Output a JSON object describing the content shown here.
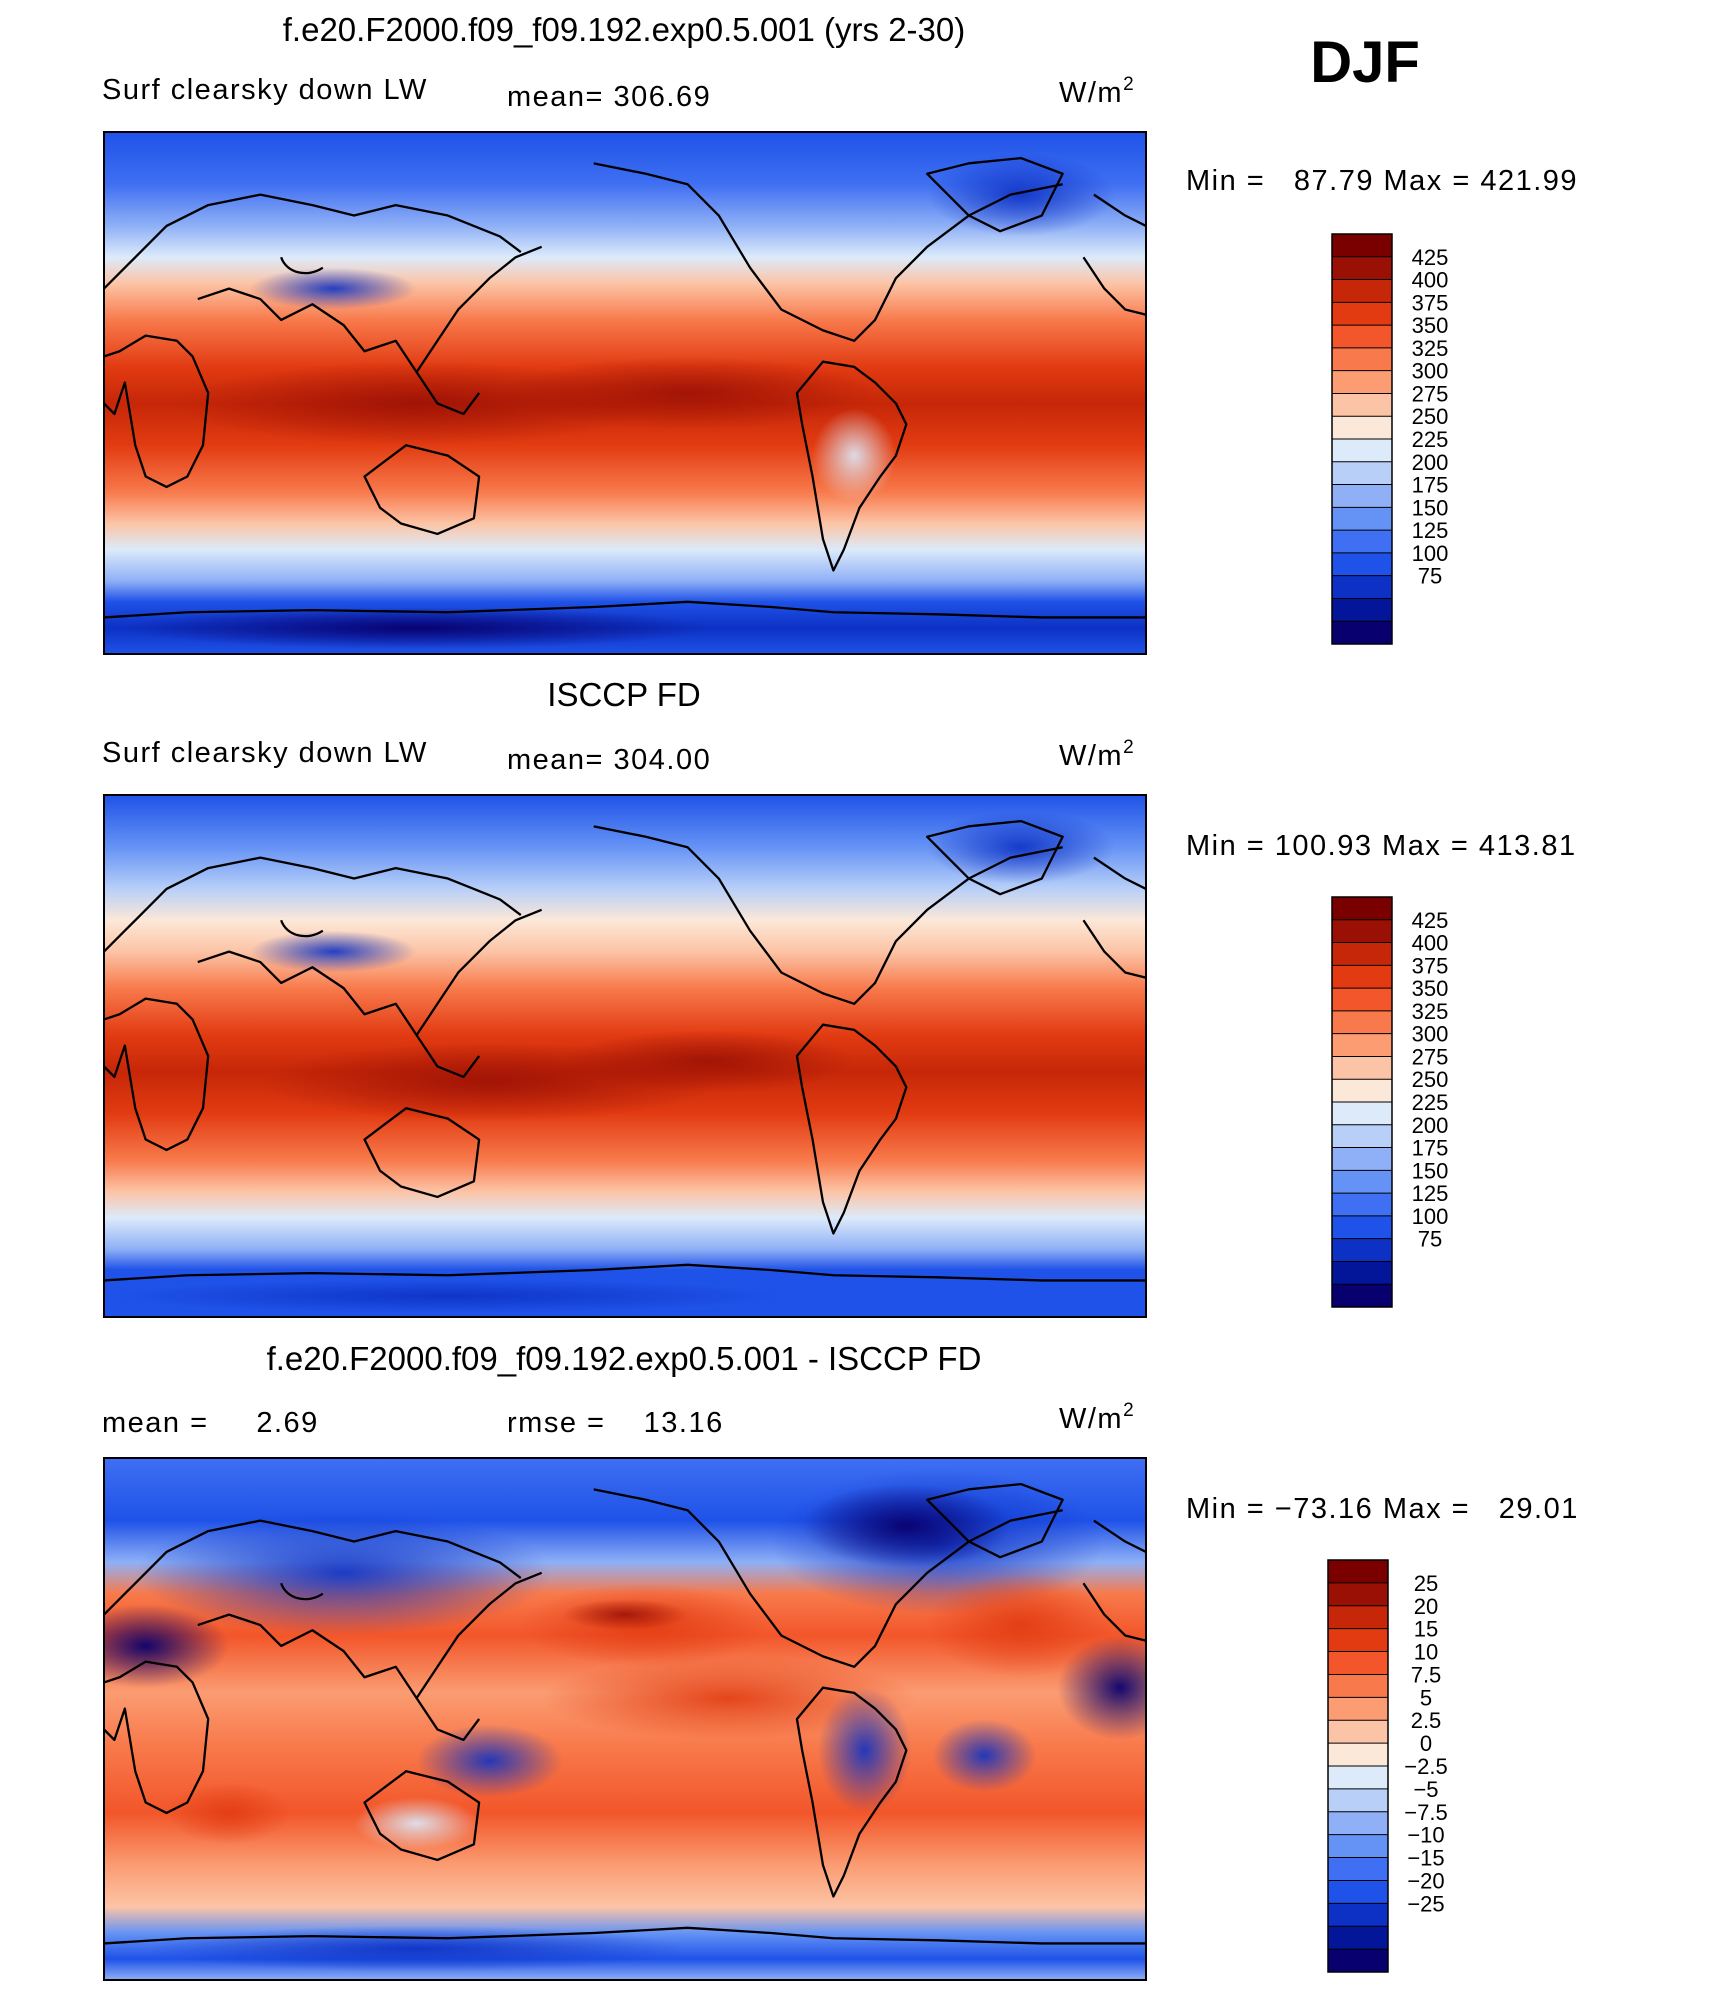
{
  "season": "DJF",
  "colors": {
    "abs_scale": [
      "#08006e",
      "#03169a",
      "#0d31c4",
      "#1f52e8",
      "#3f6ff2",
      "#6593f5",
      "#8fb0f6",
      "#b8cff8",
      "#dceafa",
      "#fce8d8",
      "#fcc4a6",
      "#fb9c72",
      "#f87a4c",
      "#f2562a",
      "#e23b12",
      "#c62708",
      "#9a1005",
      "#7a0000"
    ],
    "diff_scale": [
      "#08006e",
      "#03169a",
      "#0d31c4",
      "#1f52e8",
      "#3f6ff2",
      "#6593f5",
      "#8fb0f6",
      "#b8cff8",
      "#dceafa",
      "#fce8d8",
      "#fcc4a6",
      "#fb9c72",
      "#f87a4c",
      "#f2562a",
      "#e23b12",
      "#c62708",
      "#9a1005",
      "#7a0000"
    ]
  },
  "chart_data": [
    {
      "type": "heatmap",
      "title": "f.e20.F2000.f09_f09.192.exp0.5.001 (yrs 2-30)",
      "variable": "Surf clearsky down LW",
      "stat_text": "mean= 306.69",
      "unit": "W/m",
      "unit_sup": "2",
      "min": 87.79,
      "max": 421.99,
      "range_text": "Min =   87.79 Max = 421.99",
      "levels": [
        "425",
        "400",
        "375",
        "350",
        "325",
        "300",
        "275",
        "250",
        "225",
        "200",
        "175",
        "150",
        "125",
        "100",
        "75"
      ]
    },
    {
      "type": "heatmap",
      "title": "ISCCP FD",
      "variable": "Surf clearsky down LW",
      "stat_text": "mean= 304.00",
      "unit": "W/m",
      "unit_sup": "2",
      "min": 100.93,
      "max": 413.81,
      "range_text": "Min = 100.93 Max = 413.81",
      "levels": [
        "425",
        "400",
        "375",
        "350",
        "325",
        "300",
        "275",
        "250",
        "225",
        "200",
        "175",
        "150",
        "125",
        "100",
        "75"
      ]
    },
    {
      "type": "heatmap",
      "title": "f.e20.F2000.f09_f09.192.exp0.5.001 - ISCCP FD",
      "stat_text": "mean =     2.69",
      "rmse_text": "rmse =    13.16",
      "mean": 2.69,
      "rmse": 13.16,
      "unit": "W/m",
      "unit_sup": "2",
      "min": -73.16,
      "max": 29.01,
      "range_text": "Min = −73.16 Max =   29.01",
      "levels": [
        "25",
        "20",
        "15",
        "10",
        "7.5",
        "5",
        "2.5",
        "0",
        "−2.5",
        "−5",
        "−7.5",
        "−10",
        "−15",
        "−20",
        "−25"
      ]
    }
  ]
}
